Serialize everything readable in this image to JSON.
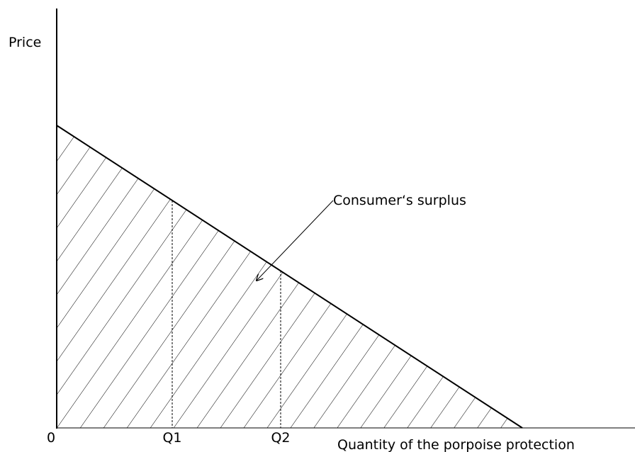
{
  "axes": {
    "y_label": "Price",
    "x_label": "Quantity of the porpoise protection",
    "origin": "0"
  },
  "markers": [
    "Q1",
    "Q2"
  ],
  "annotation": "Consumer‘s surplus"
}
